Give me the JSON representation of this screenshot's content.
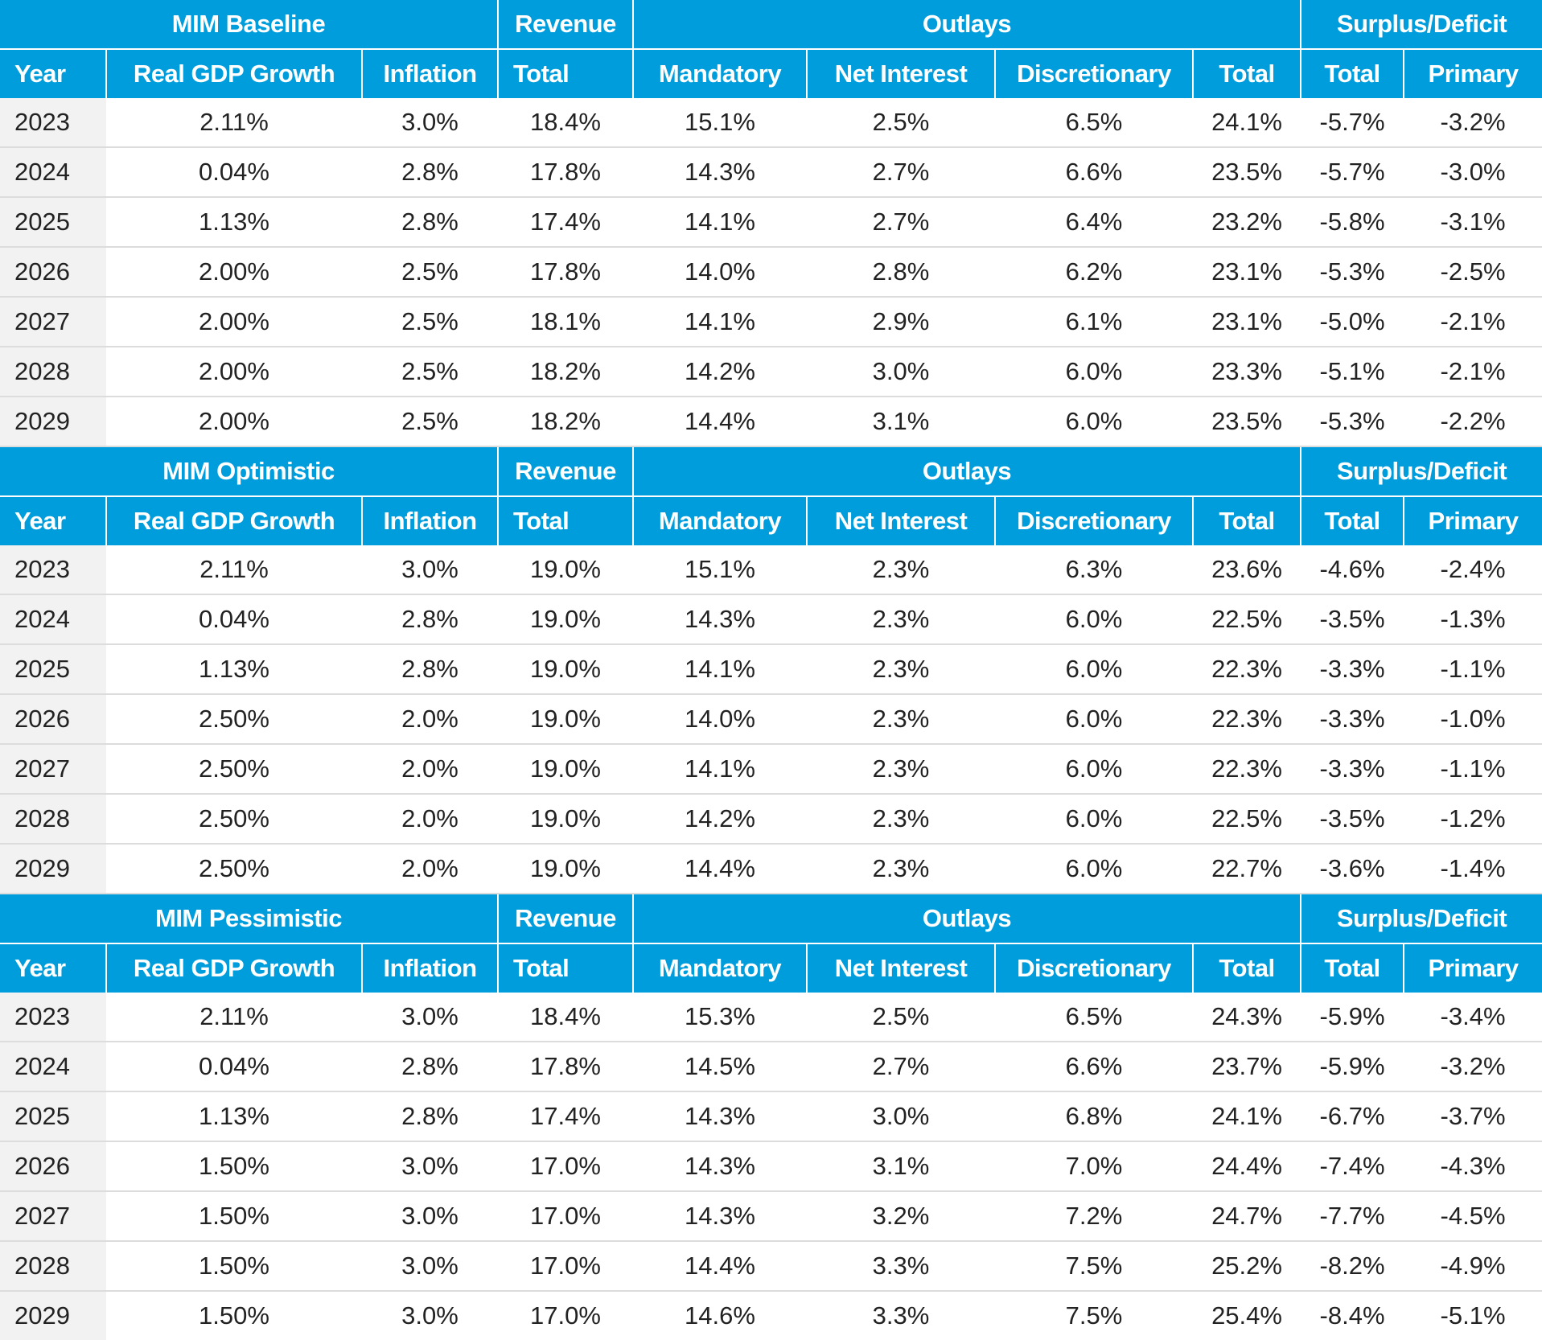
{
  "colors": {
    "accent": "#009ddc",
    "year_bg": "#f2f2f2"
  },
  "group_headers": [
    "Revenue",
    "Outlays",
    "Surplus/Deficit"
  ],
  "column_headers": [
    "Year",
    "Real GDP Growth",
    "Inflation",
    "Total",
    "Mandatory",
    "Net Interest",
    "Discretionary",
    "Total",
    "Total",
    "Primary"
  ],
  "scenarios": [
    {
      "title": "MIM Baseline",
      "rows": [
        [
          "2023",
          "2.11%",
          "3.0%",
          "18.4%",
          "15.1%",
          "2.5%",
          "6.5%",
          "24.1%",
          "-5.7%",
          "-3.2%"
        ],
        [
          "2024",
          "0.04%",
          "2.8%",
          "17.8%",
          "14.3%",
          "2.7%",
          "6.6%",
          "23.5%",
          "-5.7%",
          "-3.0%"
        ],
        [
          "2025",
          "1.13%",
          "2.8%",
          "17.4%",
          "14.1%",
          "2.7%",
          "6.4%",
          "23.2%",
          "-5.8%",
          "-3.1%"
        ],
        [
          "2026",
          "2.00%",
          "2.5%",
          "17.8%",
          "14.0%",
          "2.8%",
          "6.2%",
          "23.1%",
          "-5.3%",
          "-2.5%"
        ],
        [
          "2027",
          "2.00%",
          "2.5%",
          "18.1%",
          "14.1%",
          "2.9%",
          "6.1%",
          "23.1%",
          "-5.0%",
          "-2.1%"
        ],
        [
          "2028",
          "2.00%",
          "2.5%",
          "18.2%",
          "14.2%",
          "3.0%",
          "6.0%",
          "23.3%",
          "-5.1%",
          "-2.1%"
        ],
        [
          "2029",
          "2.00%",
          "2.5%",
          "18.2%",
          "14.4%",
          "3.1%",
          "6.0%",
          "23.5%",
          "-5.3%",
          "-2.2%"
        ]
      ]
    },
    {
      "title": "MIM Optimistic",
      "rows": [
        [
          "2023",
          "2.11%",
          "3.0%",
          "19.0%",
          "15.1%",
          "2.3%",
          "6.3%",
          "23.6%",
          "-4.6%",
          "-2.4%"
        ],
        [
          "2024",
          "0.04%",
          "2.8%",
          "19.0%",
          "14.3%",
          "2.3%",
          "6.0%",
          "22.5%",
          "-3.5%",
          "-1.3%"
        ],
        [
          "2025",
          "1.13%",
          "2.8%",
          "19.0%",
          "14.1%",
          "2.3%",
          "6.0%",
          "22.3%",
          "-3.3%",
          "-1.1%"
        ],
        [
          "2026",
          "2.50%",
          "2.0%",
          "19.0%",
          "14.0%",
          "2.3%",
          "6.0%",
          "22.3%",
          "-3.3%",
          "-1.0%"
        ],
        [
          "2027",
          "2.50%",
          "2.0%",
          "19.0%",
          "14.1%",
          "2.3%",
          "6.0%",
          "22.3%",
          "-3.3%",
          "-1.1%"
        ],
        [
          "2028",
          "2.50%",
          "2.0%",
          "19.0%",
          "14.2%",
          "2.3%",
          "6.0%",
          "22.5%",
          "-3.5%",
          "-1.2%"
        ],
        [
          "2029",
          "2.50%",
          "2.0%",
          "19.0%",
          "14.4%",
          "2.3%",
          "6.0%",
          "22.7%",
          "-3.6%",
          "-1.4%"
        ]
      ]
    },
    {
      "title": "MIM Pessimistic",
      "rows": [
        [
          "2023",
          "2.11%",
          "3.0%",
          "18.4%",
          "15.3%",
          "2.5%",
          "6.5%",
          "24.3%",
          "-5.9%",
          "-3.4%"
        ],
        [
          "2024",
          "0.04%",
          "2.8%",
          "17.8%",
          "14.5%",
          "2.7%",
          "6.6%",
          "23.7%",
          "-5.9%",
          "-3.2%"
        ],
        [
          "2025",
          "1.13%",
          "2.8%",
          "17.4%",
          "14.3%",
          "3.0%",
          "6.8%",
          "24.1%",
          "-6.7%",
          "-3.7%"
        ],
        [
          "2026",
          "1.50%",
          "3.0%",
          "17.0%",
          "14.3%",
          "3.1%",
          "7.0%",
          "24.4%",
          "-7.4%",
          "-4.3%"
        ],
        [
          "2027",
          "1.50%",
          "3.0%",
          "17.0%",
          "14.3%",
          "3.2%",
          "7.2%",
          "24.7%",
          "-7.7%",
          "-4.5%"
        ],
        [
          "2028",
          "1.50%",
          "3.0%",
          "17.0%",
          "14.4%",
          "3.3%",
          "7.5%",
          "25.2%",
          "-8.2%",
          "-4.9%"
        ],
        [
          "2029",
          "1.50%",
          "3.0%",
          "17.0%",
          "14.6%",
          "3.3%",
          "7.5%",
          "25.4%",
          "-8.4%",
          "-5.1%"
        ]
      ]
    }
  ]
}
